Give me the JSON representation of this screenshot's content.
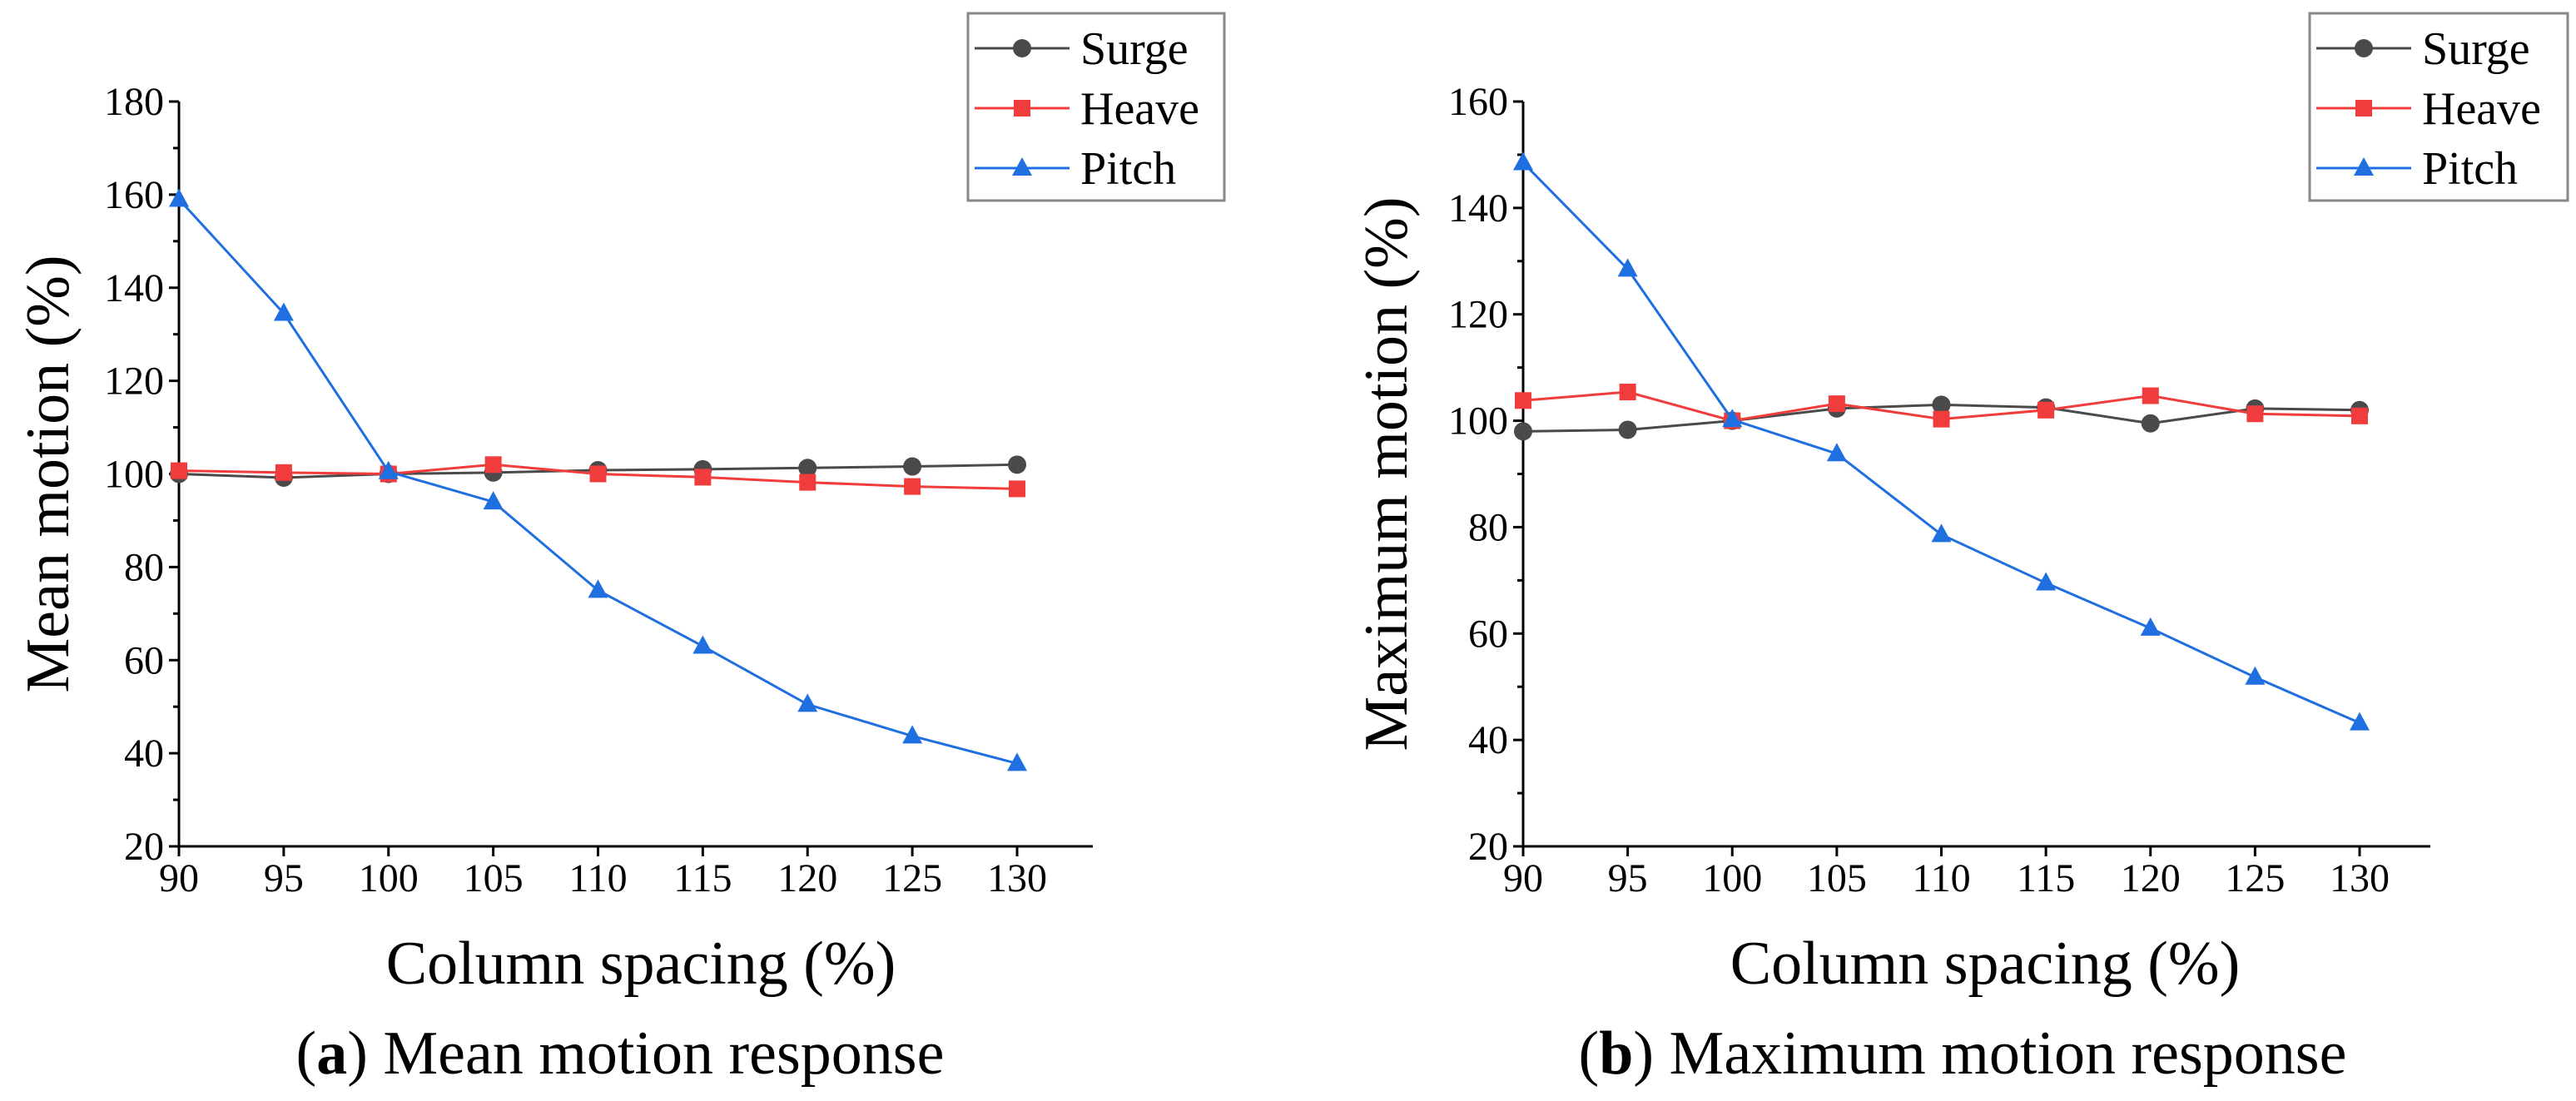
{
  "colors": {
    "Surge": "#4a4a4a",
    "Heave": "#f03c3c",
    "Pitch": "#1f6fe0"
  },
  "chart_data": [
    {
      "type": "line",
      "panel_letter": "a",
      "caption": "Mean motion response",
      "xlabel": "Column spacing (%)",
      "ylabel": "Mean motion (%)",
      "x": [
        90,
        95,
        100,
        105,
        110,
        115,
        120,
        125,
        130
      ],
      "xticks": [
        "90",
        "95",
        "100",
        "105",
        "110",
        "115",
        "120",
        "125",
        "130"
      ],
      "yticks": [
        "20",
        "40",
        "60",
        "80",
        "100",
        "120",
        "140",
        "160",
        "180"
      ],
      "xlim": [
        90,
        134
      ],
      "ylim": [
        20,
        180
      ],
      "legend_position": "top-right",
      "series": [
        {
          "name": "Surge",
          "marker": "circle",
          "values": [
            100,
            99.2,
            100,
            100.3,
            100.8,
            101,
            101.3,
            101.6,
            102
          ]
        },
        {
          "name": "Heave",
          "marker": "square",
          "values": [
            100.7,
            100.3,
            100,
            102,
            100,
            99.3,
            98.2,
            97.3,
            96.8
          ]
        },
        {
          "name": "Pitch",
          "marker": "triangle",
          "values": [
            159,
            134.5,
            100.5,
            94,
            75,
            63,
            50.5,
            43.7,
            37.8
          ]
        }
      ]
    },
    {
      "type": "line",
      "panel_letter": "b",
      "caption": "Maximum motion response",
      "xlabel": "Column spacing (%)",
      "ylabel": "Maximum motion (%)",
      "x": [
        90,
        95,
        100,
        105,
        110,
        115,
        120,
        125,
        130
      ],
      "xticks": [
        "90",
        "95",
        "100",
        "105",
        "110",
        "115",
        "120",
        "125",
        "130"
      ],
      "yticks": [
        "20",
        "40",
        "60",
        "80",
        "100",
        "120",
        "140",
        "160"
      ],
      "xlim": [
        90,
        134
      ],
      "ylim": [
        20,
        160
      ],
      "legend_position": "top-right",
      "series": [
        {
          "name": "Surge",
          "marker": "circle",
          "values": [
            98,
            98.3,
            100,
            102.3,
            103,
            102.5,
            99.5,
            102.3,
            102
          ]
        },
        {
          "name": "Heave",
          "marker": "square",
          "values": [
            103.8,
            105.4,
            100,
            103.2,
            100.3,
            102,
            104.7,
            101.3,
            100.9
          ]
        },
        {
          "name": "Pitch",
          "marker": "triangle",
          "values": [
            148.5,
            128.5,
            100.2,
            93.8,
            78.6,
            69.5,
            61,
            51.8,
            43.2
          ]
        }
      ]
    }
  ]
}
